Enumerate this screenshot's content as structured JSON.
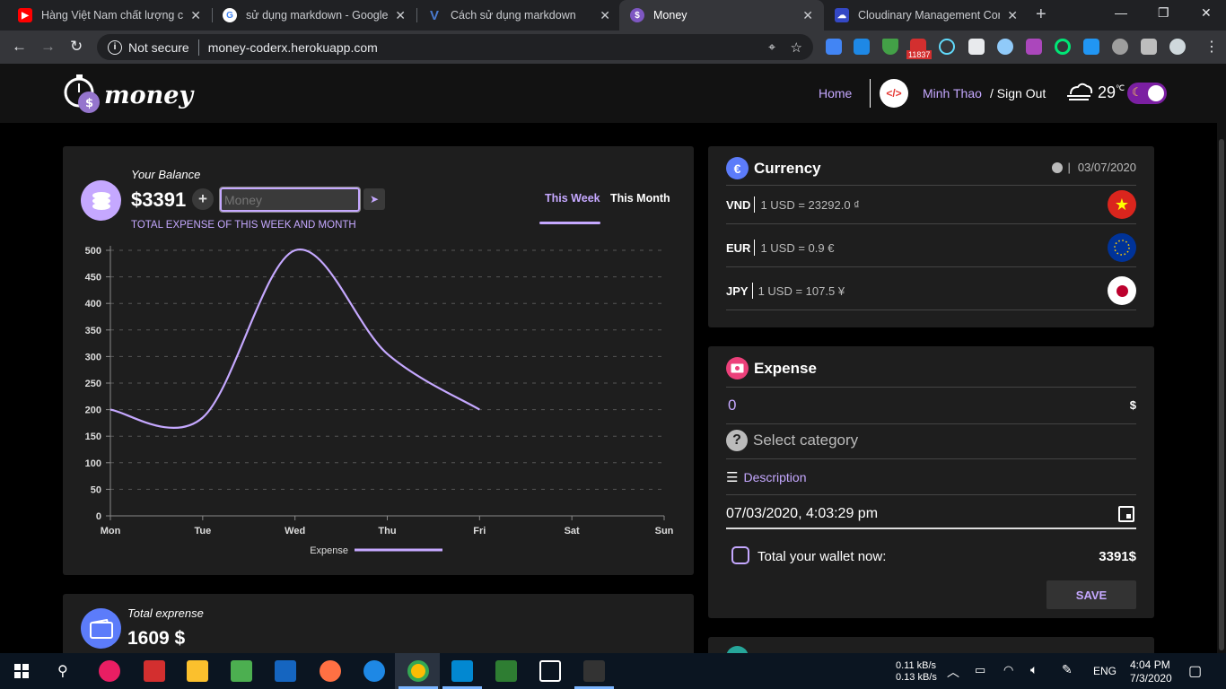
{
  "browser": {
    "tabs": [
      {
        "title": "Hàng Việt Nam chất lượng cao",
        "favicon_color": "#ff0000",
        "active": false
      },
      {
        "title": "sử dụng markdown - Google S",
        "favicon_color": "#ffffff",
        "active": false
      },
      {
        "title": "Cách sử dụng markdown",
        "favicon_color": "#4a7bd0",
        "active": false
      },
      {
        "title": "Money",
        "favicon_color": "#7e57c2",
        "active": true
      },
      {
        "title": "Cloudinary Management Cons",
        "favicon_color": "#3448c5",
        "active": false
      }
    ],
    "close_glyph": "✕",
    "new_tab_glyph": "+",
    "address": {
      "security_label": "Not secure",
      "url": "money-coderx.herokuapp.com"
    },
    "mail_badge": "11837"
  },
  "app": {
    "logo_text": "money",
    "nav": {
      "home": "Home",
      "user_name": "Minh Thao",
      "sign_out": "/ Sign Out",
      "temperature": "29",
      "temperature_unit": "℃"
    },
    "balance": {
      "title": "Your Balance",
      "amount": "$3391",
      "input_placeholder": "Money",
      "subtitle": "TOTAL EXPENSE OF THIS WEEK AND MONTH",
      "tab_week": "This Week",
      "tab_month": "This Month"
    },
    "total": {
      "title": "Total exprense",
      "amount": "1609 $"
    },
    "currency": {
      "title": "Currency",
      "badge": "€",
      "date": "03/07/2020",
      "rows": [
        {
          "code": "VND",
          "rate": "1 USD = 23292.0 ₫",
          "flag": "vn"
        },
        {
          "code": "EUR",
          "rate": "1 USD = 0.9 €",
          "flag": "eu"
        },
        {
          "code": "JPY",
          "rate": "1 USD = 107.5 ¥",
          "flag": "jp"
        }
      ]
    },
    "expense": {
      "title": "Expense",
      "amount": "0",
      "currency_symbol": "$",
      "category_placeholder": "Select category",
      "description_label": "Description",
      "datetime": "07/03/2020, 4:03:29 pm",
      "wallet_label": "Total your wallet now:",
      "wallet_value": "3391$",
      "save_label": "SAVE"
    }
  },
  "chart_data": {
    "type": "line",
    "categories": [
      "Mon",
      "Tue",
      "Wed",
      "Thu",
      "Fri",
      "Sat",
      "Sun"
    ],
    "series": [
      {
        "name": "Expense",
        "values": [
          200,
          185,
          500,
          305,
          200,
          null,
          null
        ],
        "color": "#c5a8ff"
      }
    ],
    "ylim": [
      0,
      500
    ],
    "yticks": [
      0,
      50,
      100,
      150,
      200,
      250,
      300,
      350,
      400,
      450,
      500
    ],
    "grid": true,
    "legend": "bottom"
  },
  "taskbar": {
    "net_up": "0.11 kB/s",
    "net_down": "0.13 kB/s",
    "lang": "ENG",
    "time": "4:04 PM",
    "date": "7/3/2020"
  }
}
